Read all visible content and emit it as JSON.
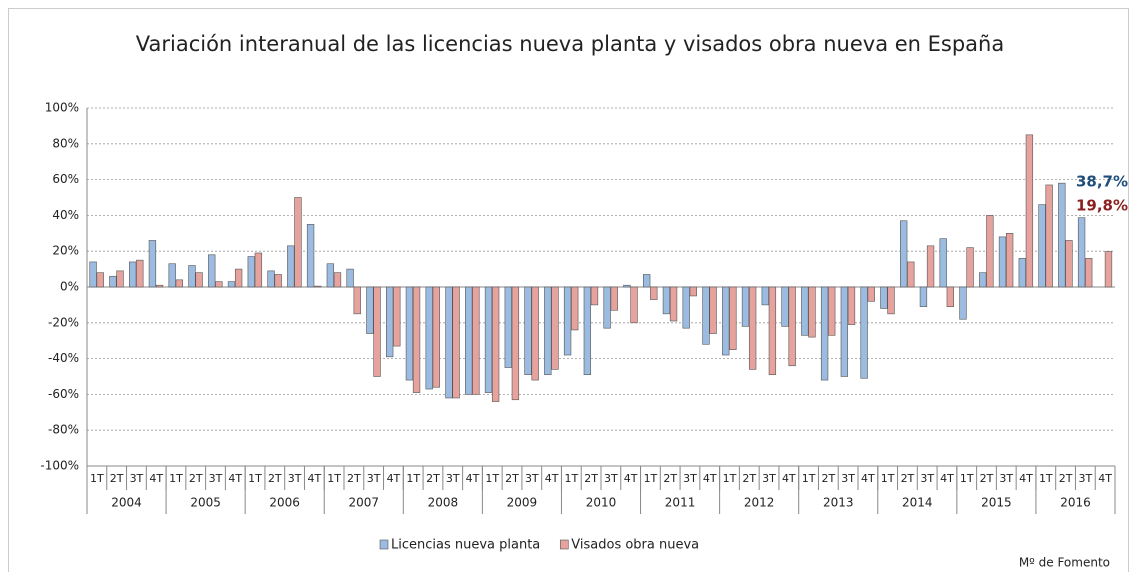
{
  "chart_data": {
    "type": "bar",
    "title": "Variación interanual de las licencias nueva planta y visados obra nueva en España",
    "categories": [
      "1T",
      "2T",
      "3T",
      "4T",
      "1T",
      "2T",
      "3T",
      "4T",
      "1T",
      "2T",
      "3T",
      "4T",
      "1T",
      "2T",
      "3T",
      "4T",
      "1T",
      "2T",
      "3T",
      "4T",
      "1T",
      "2T",
      "3T",
      "4T",
      "1T",
      "2T",
      "3T",
      "4T",
      "1T",
      "2T",
      "3T",
      "4T",
      "1T",
      "2T",
      "3T",
      "4T",
      "1T",
      "2T",
      "3T",
      "4T",
      "1T",
      "2T",
      "3T",
      "4T",
      "1T",
      "2T",
      "3T",
      "4T",
      "1T",
      "2T",
      "3T",
      "4T"
    ],
    "groups": [
      "2004",
      "2005",
      "2006",
      "2007",
      "2008",
      "2009",
      "2010",
      "2011",
      "2012",
      "2013",
      "2014",
      "2015",
      "2016"
    ],
    "series": [
      {
        "name": "Licencias nueva planta",
        "color": "#9bbbe0",
        "values": [
          14,
          6,
          14,
          26,
          13,
          12,
          18,
          3,
          17,
          9,
          23,
          35,
          13,
          10,
          -26,
          -39,
          -52,
          -57,
          -62,
          -60,
          -59,
          -45,
          -49,
          -49,
          -38,
          -49,
          -23,
          1,
          7,
          -15,
          -23,
          -32,
          -38,
          -22,
          -10,
          -22,
          -27,
          -52,
          -50,
          -51,
          -12,
          37,
          -11,
          27,
          -18,
          8,
          28,
          16,
          46,
          58,
          38.7,
          null
        ]
      },
      {
        "name": "Visados obra nueva",
        "color": "#e6a39d",
        "values": [
          8,
          9,
          15,
          1,
          4,
          8,
          3,
          10,
          19,
          7,
          50,
          0.5,
          8,
          -15,
          -50,
          -33,
          -59,
          -56,
          -62,
          -60,
          -64,
          -63,
          -52,
          -46,
          -24,
          -10,
          -13,
          -20,
          -7,
          -19,
          -5,
          -26,
          -35,
          -46,
          -49,
          -44,
          -28,
          -27,
          -21,
          -8,
          -15,
          14,
          23,
          -11,
          22,
          40,
          30,
          85,
          57,
          26,
          16,
          19.8
        ]
      }
    ],
    "annotations": [
      {
        "text": "38,7%",
        "color": "#1f4e79"
      },
      {
        "text": "19,8%",
        "color": "#8b2020"
      }
    ],
    "source": "Mº  de Fomento",
    "ylim": [
      -100,
      100
    ],
    "yticks": [
      {
        "value": -100,
        "label": "-100%"
      },
      {
        "value": -80,
        "label": "-80%"
      },
      {
        "value": -60,
        "label": "-60%"
      },
      {
        "value": -40,
        "label": "-40%"
      },
      {
        "value": -20,
        "label": "-20%"
      },
      {
        "value": 0,
        "label": "0%"
      },
      {
        "value": 20,
        "label": "20%"
      },
      {
        "value": 40,
        "label": "40%"
      },
      {
        "value": 60,
        "label": "60%"
      },
      {
        "value": 80,
        "label": "80%"
      },
      {
        "value": 100,
        "label": "100%"
      }
    ],
    "grid": true
  }
}
